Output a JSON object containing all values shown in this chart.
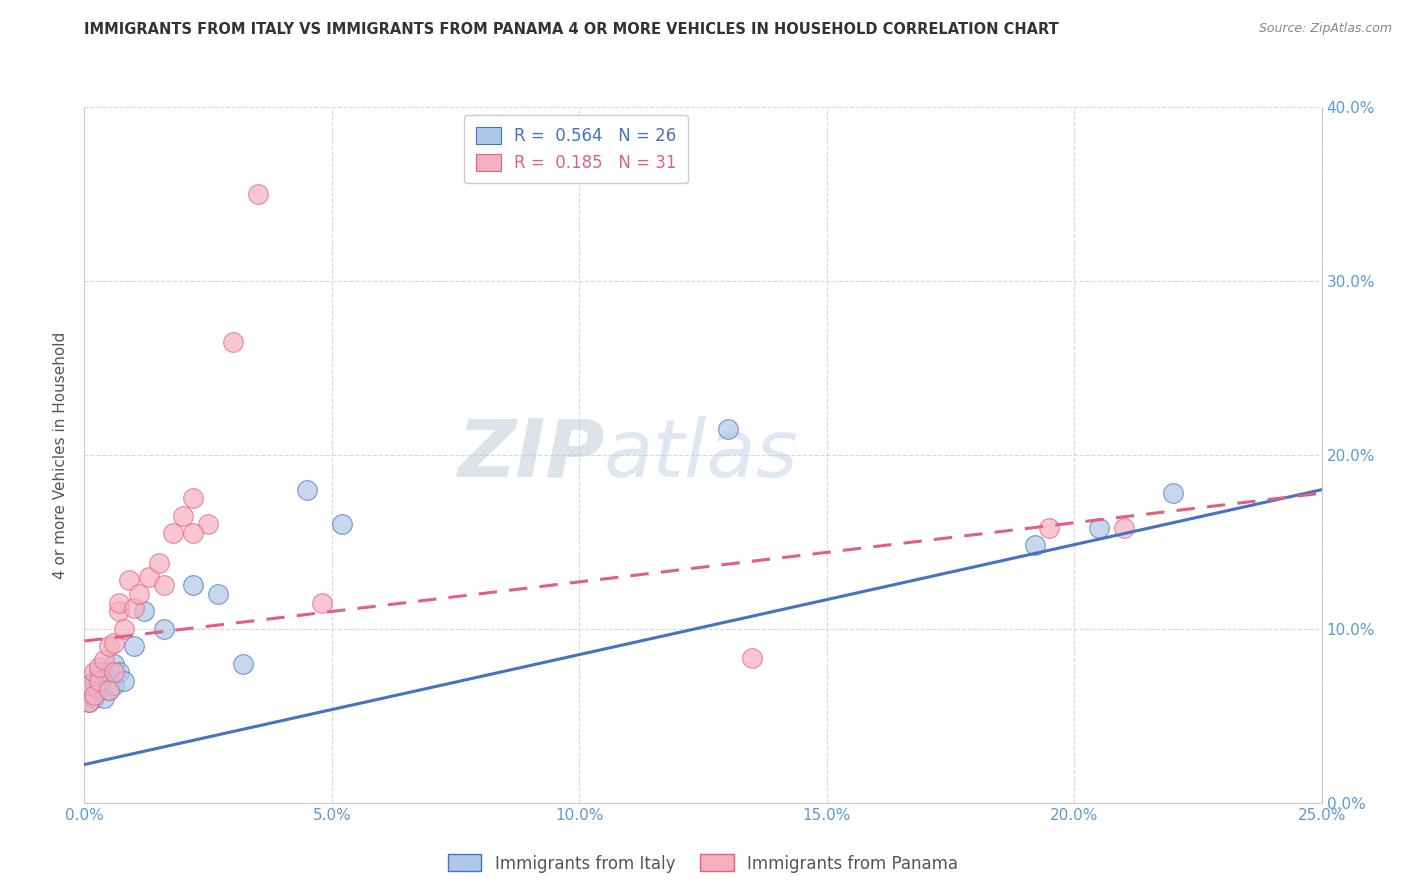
{
  "title": "IMMIGRANTS FROM ITALY VS IMMIGRANTS FROM PANAMA 4 OR MORE VEHICLES IN HOUSEHOLD CORRELATION CHART",
  "source": "Source: ZipAtlas.com",
  "ylabel": "4 or more Vehicles in Household",
  "legend_italy": "Immigrants from Italy",
  "legend_panama": "Immigrants from Panama",
  "R_italy": 0.564,
  "N_italy": 26,
  "R_panama": 0.185,
  "N_panama": 31,
  "xlim": [
    0.0,
    0.25
  ],
  "ylim": [
    0.0,
    0.4
  ],
  "xticks": [
    0.0,
    0.05,
    0.1,
    0.15,
    0.2,
    0.25
  ],
  "yticks": [
    0.0,
    0.1,
    0.2,
    0.3,
    0.4
  ],
  "color_italy": "#aec6e8",
  "color_panama": "#f4afc0",
  "color_italy_line": "#4472c4",
  "color_panama_line": "#e06080",
  "background_color": "#ffffff",
  "grid_color": "#d8d8d8",
  "title_color": "#333333",
  "axis_tick_color": "#5b9bd5",
  "watermark_zip": "ZIP",
  "watermark_atlas": "atlas",
  "italy_x": [
    0.001,
    0.001,
    0.002,
    0.002,
    0.003,
    0.003,
    0.004,
    0.004,
    0.005,
    0.005,
    0.006,
    0.006,
    0.007,
    0.008,
    0.01,
    0.012,
    0.016,
    0.022,
    0.027,
    0.032,
    0.045,
    0.052,
    0.13,
    0.192,
    0.205,
    0.22
  ],
  "italy_y": [
    0.058,
    0.068,
    0.06,
    0.07,
    0.065,
    0.075,
    0.06,
    0.072,
    0.065,
    0.075,
    0.068,
    0.08,
    0.075,
    0.07,
    0.09,
    0.11,
    0.1,
    0.125,
    0.12,
    0.08,
    0.18,
    0.16,
    0.215,
    0.148,
    0.158,
    0.178
  ],
  "panama_x": [
    0.001,
    0.001,
    0.002,
    0.002,
    0.003,
    0.003,
    0.004,
    0.005,
    0.005,
    0.006,
    0.006,
    0.007,
    0.007,
    0.008,
    0.009,
    0.01,
    0.011,
    0.013,
    0.015,
    0.016,
    0.018,
    0.02,
    0.022,
    0.025,
    0.03,
    0.035,
    0.022,
    0.048,
    0.135,
    0.195,
    0.21
  ],
  "panama_y": [
    0.058,
    0.068,
    0.062,
    0.075,
    0.07,
    0.078,
    0.082,
    0.065,
    0.09,
    0.075,
    0.092,
    0.11,
    0.115,
    0.1,
    0.128,
    0.112,
    0.12,
    0.13,
    0.138,
    0.125,
    0.155,
    0.165,
    0.175,
    0.16,
    0.265,
    0.35,
    0.155,
    0.115,
    0.083,
    0.158,
    0.158
  ],
  "italy_line_x": [
    0.0,
    0.25
  ],
  "italy_line_y": [
    0.022,
    0.18
  ],
  "panama_line_x": [
    0.0,
    0.25
  ],
  "panama_line_y": [
    0.093,
    0.178
  ]
}
